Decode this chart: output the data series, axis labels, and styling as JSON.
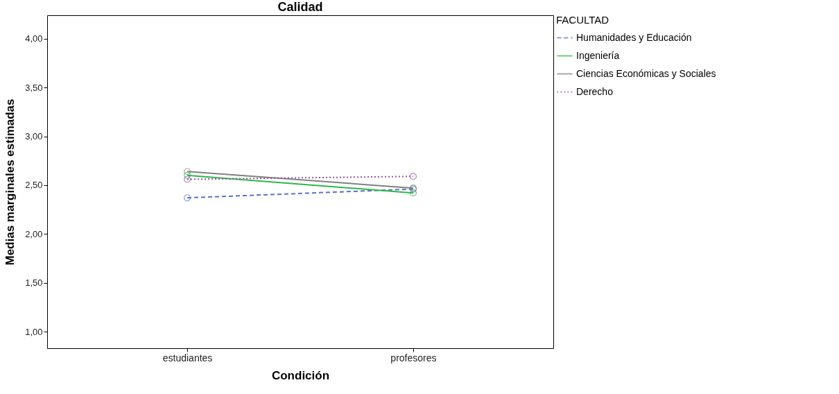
{
  "chart_data": {
    "type": "line",
    "title": "Calidad",
    "xlabel": "Condición",
    "ylabel": "Medias marginales estimadas",
    "legend_title": "FACULTAD",
    "categories": [
      "estudiantes",
      "profesores"
    ],
    "series": [
      {
        "name": "Humanidades y Educación",
        "color": "#5a6fc8",
        "line_style": "dashed",
        "values": [
          2.37,
          2.46
        ]
      },
      {
        "name": "Ingeniería",
        "color": "#2db84a",
        "line_style": "solid",
        "values": [
          2.6,
          2.42
        ]
      },
      {
        "name": "Ciencias Económicas y Sociales",
        "color": "#808080",
        "line_style": "solid",
        "values": [
          2.64,
          2.47
        ]
      },
      {
        "name": "Derecho",
        "color": "#9c4fa8",
        "line_style": "dotted",
        "values": [
          2.56,
          2.59
        ]
      }
    ],
    "ylim": [
      0.83,
      4.24
    ],
    "yticks": [
      {
        "value": 1,
        "label": "1,00"
      },
      {
        "value": 1.5,
        "label": "1,50"
      },
      {
        "value": 2,
        "label": "2,00"
      },
      {
        "value": 2.5,
        "label": "2,50"
      },
      {
        "value": 3,
        "label": "3,00"
      },
      {
        "value": 3.5,
        "label": "3,50"
      },
      {
        "value": 4,
        "label": "4,00"
      }
    ],
    "marker": "circle",
    "grid": false,
    "legend": "top right"
  }
}
